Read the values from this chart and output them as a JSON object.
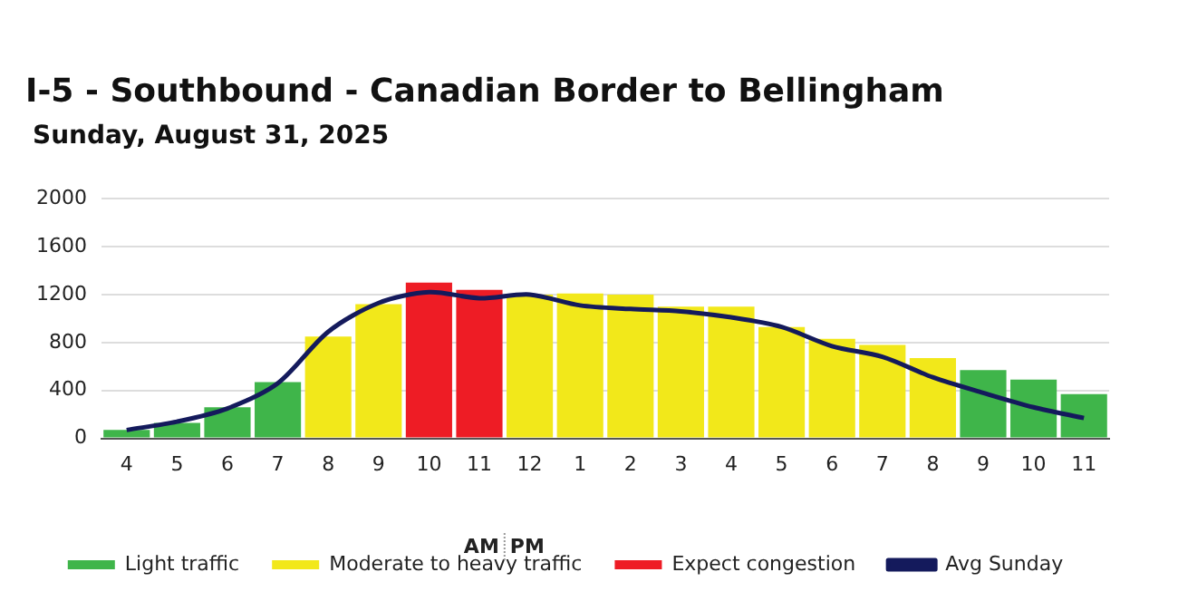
{
  "chart_data": {
    "type": "bar",
    "title": "I-5 - Southbound - Canadian Border to Bellingham",
    "subtitle": "Sunday, August 31, 2025",
    "categories": [
      "4",
      "5",
      "6",
      "7",
      "8",
      "9",
      "10",
      "11",
      "12",
      "1",
      "2",
      "3",
      "4",
      "5",
      "6",
      "7",
      "8",
      "9",
      "10",
      "11"
    ],
    "stacked": true,
    "series": [
      {
        "name": "Light traffic",
        "color": "#3fb54a",
        "values": [
          70,
          130,
          260,
          470,
          null,
          null,
          null,
          null,
          null,
          null,
          null,
          null,
          null,
          null,
          null,
          null,
          null,
          570,
          490,
          370
        ]
      },
      {
        "name": "Moderate to heavy traffic",
        "color": "#f2e81a",
        "values": [
          null,
          null,
          null,
          null,
          850,
          1120,
          null,
          null,
          1200,
          1210,
          1200,
          1100,
          1100,
          930,
          830,
          780,
          670,
          null,
          null,
          null
        ]
      },
      {
        "name": "Expect congestion",
        "color": "#ee1c25",
        "values": [
          null,
          null,
          null,
          null,
          null,
          null,
          1300,
          1240,
          null,
          null,
          null,
          null,
          null,
          null,
          null,
          null,
          null,
          null,
          null,
          null
        ]
      },
      {
        "name": "Avg Sunday",
        "type": "line",
        "color": "#141a5c",
        "marker": "none",
        "values": [
          70,
          140,
          250,
          460,
          890,
          1130,
          1220,
          1170,
          1200,
          1110,
          1080,
          1060,
          1010,
          930,
          770,
          680,
          510,
          380,
          260,
          170
        ]
      }
    ],
    "ylim": [
      0,
      2000
    ],
    "yticks": [
      0,
      400,
      800,
      1200,
      1600,
      2000
    ],
    "grid": "y",
    "legend": "bottom",
    "annotations": [
      "AM",
      "PM"
    ]
  }
}
